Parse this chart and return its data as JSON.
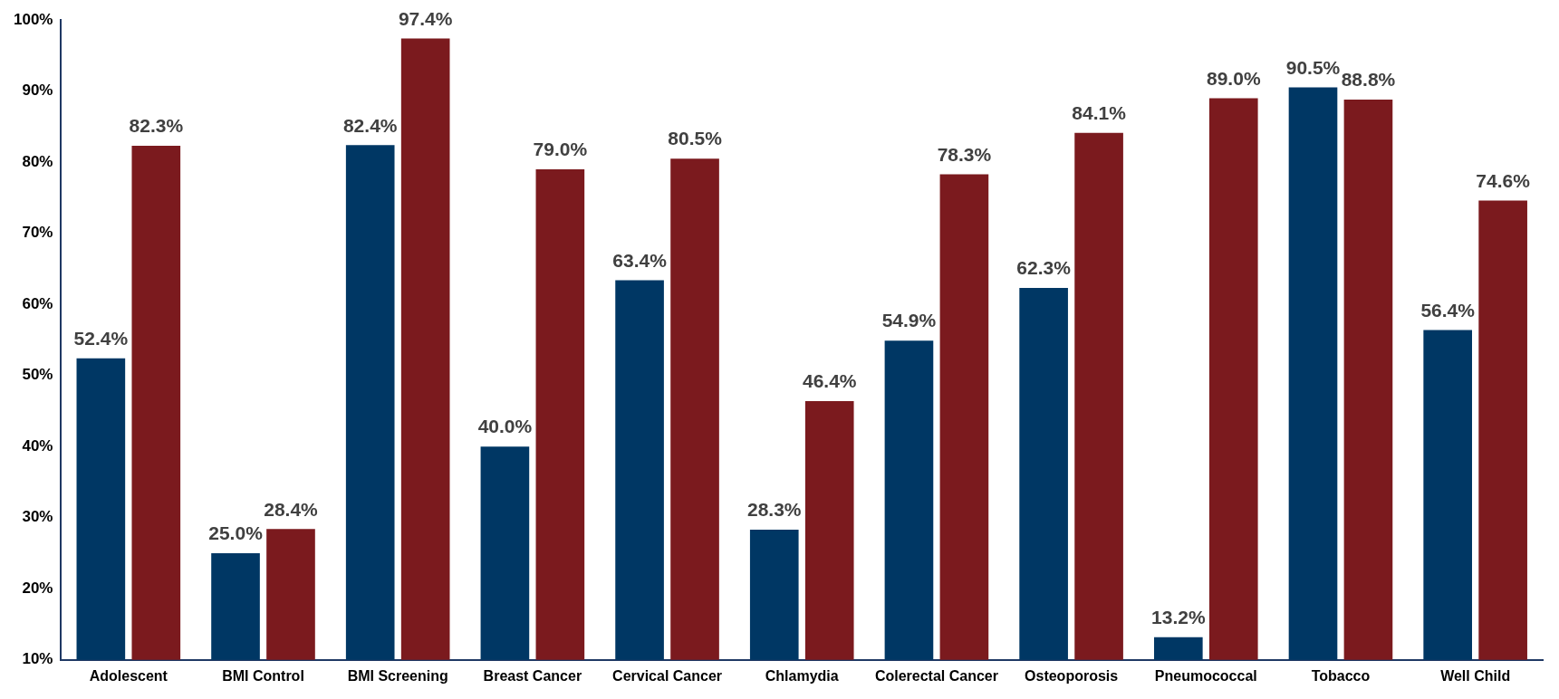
{
  "chart_data": {
    "type": "bar",
    "categories": [
      "Adolescent",
      "BMI Control",
      "BMI Screening",
      "Breast Cancer",
      "Cervical Cancer",
      "Chlamydia",
      "Colerectal Cancer",
      "Osteoporosis",
      "Pneumococcal",
      "Tobacco",
      "Well Child"
    ],
    "series": [
      {
        "color": "#003764",
        "values": [
          52.4,
          25.0,
          82.4,
          40.0,
          63.4,
          28.3,
          54.9,
          62.3,
          13.2,
          90.5,
          56.4
        ],
        "value_labels": [
          "52.4%",
          "25.0%",
          "82.4%",
          "40.0%",
          "63.4%",
          "28.3%",
          "54.9%",
          "62.3%",
          "13.2%",
          "90.5%",
          "56.4%"
        ]
      },
      {
        "color": "#7b1a1e",
        "values": [
          82.3,
          28.4,
          97.4,
          79.0,
          80.5,
          46.4,
          78.3,
          84.1,
          89.0,
          88.8,
          74.6
        ],
        "value_labels": [
          "82.3%",
          "28.4%",
          "97.4%",
          "79.0%",
          "80.5%",
          "46.4%",
          "78.3%",
          "84.1%",
          "89.0%",
          "88.8%",
          "74.6%"
        ]
      }
    ],
    "ylim": [
      10,
      100
    ],
    "yticks": [
      {
        "value": 10,
        "label": "10%"
      },
      {
        "value": 20,
        "label": "20%"
      },
      {
        "value": 30,
        "label": "30%"
      },
      {
        "value": 40,
        "label": "40%"
      },
      {
        "value": 50,
        "label": "50%"
      },
      {
        "value": 60,
        "label": "60%"
      },
      {
        "value": 70,
        "label": "70%"
      },
      {
        "value": 80,
        "label": "80%"
      },
      {
        "value": 90,
        "label": "90%"
      },
      {
        "value": 100,
        "label": "100%"
      }
    ],
    "grid": false,
    "legend": false
  }
}
